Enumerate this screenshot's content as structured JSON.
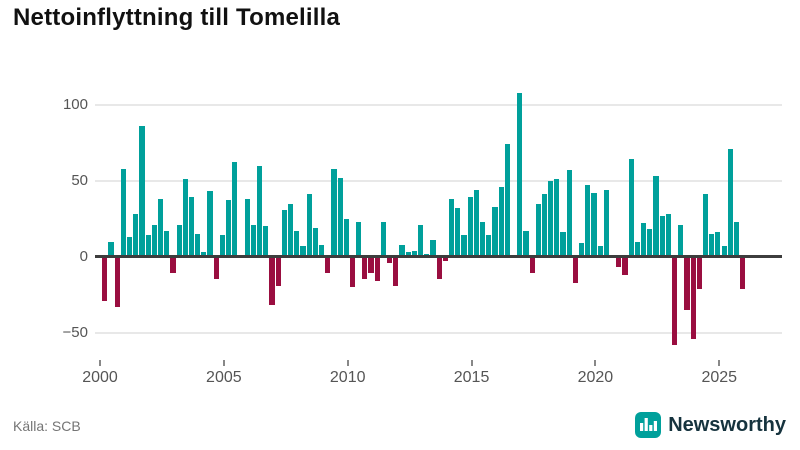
{
  "header": {
    "title": "Nettoinflyttning till Tomelilla"
  },
  "footer": {
    "source_label": "Källa: SCB",
    "brand_name": "Newsworthy"
  },
  "chart_data": {
    "type": "bar",
    "title": "Nettoinflyttning till Tomelilla",
    "frequency": "quarterly",
    "start_period": "2000 Q1",
    "end_period": "2025 Q4",
    "x_tick_labels": [
      "2000",
      "2005",
      "2010",
      "2015",
      "2020",
      "2025"
    ],
    "y_tick_labels": [
      "100",
      "50",
      "0",
      "−50"
    ],
    "y_ticks": [
      100,
      50,
      0,
      -50
    ],
    "ylim": [
      -62,
      115
    ],
    "grid": "horizontal",
    "legend": "none",
    "values": [
      -28,
      10,
      -32,
      58,
      13,
      28,
      86,
      14,
      21,
      38,
      17,
      -10,
      21,
      51,
      39,
      15,
      3,
      43,
      -14,
      14,
      37,
      62,
      0,
      38,
      21,
      60,
      20,
      -31,
      -18,
      31,
      35,
      17,
      7,
      41,
      19,
      8,
      -10,
      58,
      52,
      25,
      -19,
      23,
      -14,
      -10,
      -15,
      23,
      -3,
      -18,
      8,
      3,
      4,
      21,
      2,
      11,
      -14,
      -2,
      38,
      32,
      14,
      39,
      44,
      23,
      14,
      33,
      46,
      74,
      0,
      108,
      17,
      -10,
      35,
      41,
      50,
      51,
      16,
      57,
      -16,
      9,
      47,
      42,
      7,
      44,
      0,
      -6,
      -11,
      64,
      10,
      22,
      18,
      53,
      27,
      28,
      -57,
      21,
      -34,
      -53,
      -20,
      41,
      15,
      16,
      7,
      71,
      23,
      -20
    ],
    "colors": {
      "positive": "#00A09B",
      "negative": "#9A0E40",
      "gridline": "#e8e8e8",
      "zero_line": "#3d3d3d",
      "axis_text": "#555555"
    }
  }
}
